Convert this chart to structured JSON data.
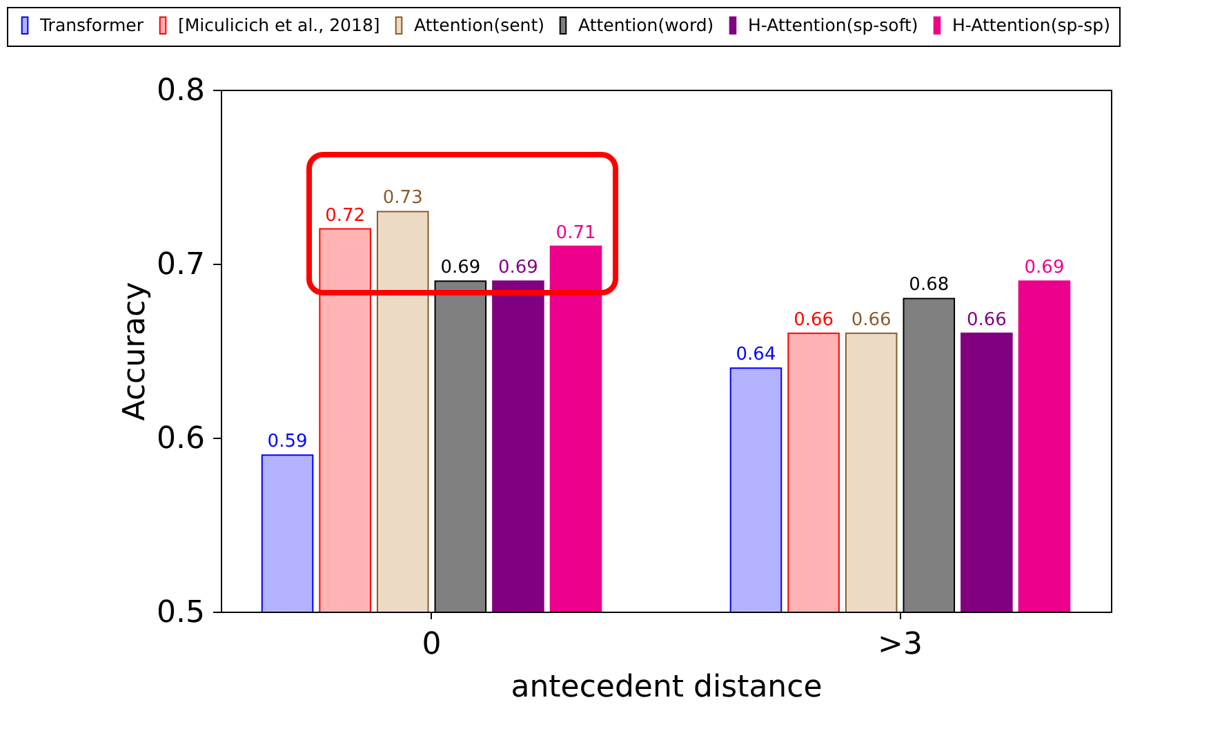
{
  "chart_data": {
    "type": "bar",
    "xlabel": "antecedent distance",
    "ylabel": "Accuracy",
    "categories": [
      "0",
      ">3"
    ],
    "series": [
      {
        "name": "Transformer",
        "color": "#b3b3ff",
        "values": [
          0.59,
          0.64
        ]
      },
      {
        "name": "[Miculicich et al., 2018]",
        "color": "#ffb3b3",
        "values": [
          0.72,
          0.66
        ]
      },
      {
        "name": "Attention(sent)",
        "color": "#ecdac5",
        "values": [
          0.73,
          0.66
        ]
      },
      {
        "name": "Attention(word)",
        "color": "#808080",
        "values": [
          0.69,
          0.68
        ]
      },
      {
        "name": "H-Attention(sp-soft)",
        "color": "#800080",
        "values": [
          0.69,
          0.66
        ]
      },
      {
        "name": "H-Attention(sp-sp)",
        "color": "#ec008c",
        "values": [
          0.71,
          0.69
        ]
      }
    ],
    "ylim": [
      0.5,
      0.8
    ],
    "yticks": [
      0.5,
      0.6,
      0.7,
      0.8
    ],
    "grid": false,
    "legend": "top",
    "data_labels": true
  }
}
